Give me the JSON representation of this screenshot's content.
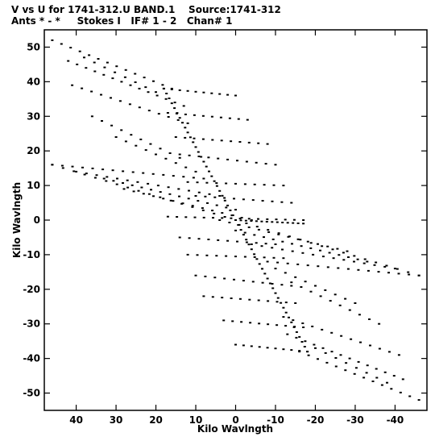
{
  "header": {
    "line1": "V vs U for 1741-312.U BAND.1    Source:1741-312",
    "line2": "Ants * - *     Stokes I   IF# 1 - 2   Chan# 1"
  },
  "chart_data": {
    "type": "scatter",
    "title": "V vs U for 1741-312.U BAND.1    Source:1741-312",
    "subtitle": "Ants * - *     Stokes I   IF# 1 - 2   Chan# 1",
    "xlabel": "Kilo Wavlngth",
    "ylabel": "Kilo Wavlngth",
    "xlim": [
      48,
      -48
    ],
    "ylim": [
      -55,
      55
    ],
    "xticks": [
      40,
      30,
      20,
      10,
      0,
      -10,
      -20,
      -30,
      -40
    ],
    "yticks": [
      50,
      40,
      30,
      20,
      10,
      0,
      -10,
      -20,
      -30,
      -40,
      -50
    ],
    "grid": false,
    "marker_color": "#000000",
    "tracks": [
      {
        "from": [
          46,
          52
        ],
        "to": [
          16,
          38
        ],
        "n": 14
      },
      {
        "from": [
          42,
          46
        ],
        "to": [
          13,
          33
        ],
        "n": 14
      },
      {
        "from": [
          41,
          39
        ],
        "to": [
          12,
          28
        ],
        "n": 13
      },
      {
        "from": [
          46,
          16
        ],
        "to": [
          8,
          12
        ],
        "n": 16
      },
      {
        "from": [
          40,
          14
        ],
        "to": [
          4,
          7
        ],
        "n": 15
      },
      {
        "from": [
          33,
          12
        ],
        "to": [
          0,
          3
        ],
        "n": 15
      },
      {
        "from": [
          28,
          9
        ],
        "to": [
          -4,
          0
        ],
        "n": 14
      },
      {
        "from": [
          18,
          38
        ],
        "to": [
          0,
          36
        ],
        "n": 10
      },
      {
        "from": [
          17,
          31
        ],
        "to": [
          -3,
          29
        ],
        "n": 10
      },
      {
        "from": [
          15,
          24
        ],
        "to": [
          -8,
          22
        ],
        "n": 11
      },
      {
        "from": [
          14,
          19
        ],
        "to": [
          -10,
          16
        ],
        "n": 11
      },
      {
        "from": [
          12,
          11
        ],
        "to": [
          -12,
          10
        ],
        "n": 11
      },
      {
        "from": [
          10,
          7
        ],
        "to": [
          -14,
          5
        ],
        "n": 11
      },
      {
        "from": [
          17,
          1
        ],
        "to": [
          -17,
          0
        ],
        "n": 16
      },
      {
        "from": [
          18,
          38
        ],
        "to": [
          0,
          0
        ],
        "n": 28
      },
      {
        "from": [
          0,
          0
        ],
        "to": [
          -18,
          -38
        ],
        "n": 28
      },
      {
        "from": [
          0,
          0
        ],
        "to": [
          -17,
          -1
        ],
        "n": 14
      },
      {
        "from": [
          46,
          16
        ],
        "to": [
          0,
          0
        ],
        "n": 18
      },
      {
        "from": [
          0,
          0
        ],
        "to": [
          -46,
          -16
        ],
        "n": 18
      },
      {
        "from": [
          -46,
          -16
        ],
        "to": [
          -8,
          -12
        ],
        "n": 16
      },
      {
        "from": [
          -40,
          -14
        ],
        "to": [
          -4,
          -7
        ],
        "n": 15
      },
      {
        "from": [
          -33,
          -12
        ],
        "to": [
          0,
          -3
        ],
        "n": 15
      },
      {
        "from": [
          -28,
          -9
        ],
        "to": [
          4,
          0
        ],
        "n": 14
      },
      {
        "from": [
          -18,
          -38
        ],
        "to": [
          0,
          -36
        ],
        "n": 10
      },
      {
        "from": [
          -17,
          -31
        ],
        "to": [
          3,
          -29
        ],
        "n": 10
      },
      {
        "from": [
          -15,
          -24
        ],
        "to": [
          8,
          -22
        ],
        "n": 11
      },
      {
        "from": [
          -14,
          -19
        ],
        "to": [
          10,
          -16
        ],
        "n": 11
      },
      {
        "from": [
          -12,
          -11
        ],
        "to": [
          12,
          -10
        ],
        "n": 11
      },
      {
        "from": [
          -10,
          -7
        ],
        "to": [
          14,
          -5
        ],
        "n": 11
      },
      {
        "from": [
          -46,
          -52
        ],
        "to": [
          -16,
          -38
        ],
        "n": 14
      },
      {
        "from": [
          -42,
          -46
        ],
        "to": [
          -13,
          -33
        ],
        "n": 14
      },
      {
        "from": [
          -41,
          -39
        ],
        "to": [
          -12,
          -28
        ],
        "n": 13
      },
      {
        "from": [
          38,
          47
        ],
        "to": [
          20,
          37
        ],
        "n": 8
      },
      {
        "from": [
          -38,
          -47
        ],
        "to": [
          -20,
          -37
        ],
        "n": 8
      },
      {
        "from": [
          36,
          30
        ],
        "to": [
          14,
          18
        ],
        "n": 10
      },
      {
        "from": [
          -36,
          -30
        ],
        "to": [
          -14,
          -18
        ],
        "n": 10
      },
      {
        "from": [
          30,
          24
        ],
        "to": [
          10,
          14
        ],
        "n": 9
      },
      {
        "from": [
          -30,
          -24
        ],
        "to": [
          -10,
          -14
        ],
        "n": 9
      }
    ]
  }
}
